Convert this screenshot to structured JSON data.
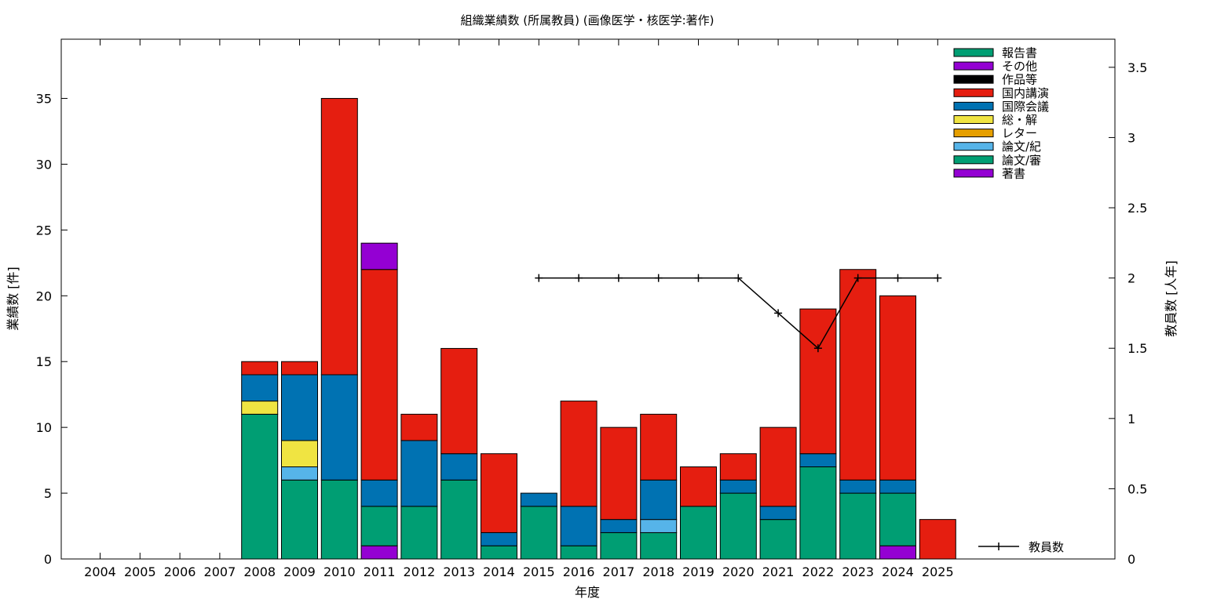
{
  "chart_data": {
    "type": "bar",
    "stacked": true,
    "title": "組織業績数 (所属教員) (画像医学・核医学:著作)",
    "xlabel": "年度",
    "ylabel": "業績数 [件]",
    "y2label": "教員数 [人年]",
    "ylim": [
      0,
      39.5
    ],
    "y2lim": [
      0,
      3.7
    ],
    "yticks": [
      "0",
      "5",
      "10",
      "15",
      "20",
      "25",
      "30",
      "35"
    ],
    "y2ticks": [
      "0",
      "0.5",
      "1",
      "1.5",
      "2",
      "2.5",
      "3",
      "3.5"
    ],
    "grid": false,
    "legend_position": "top-right",
    "categories": [
      "2004",
      "2005",
      "2006",
      "2007",
      "2008",
      "2009",
      "2010",
      "2011",
      "2012",
      "2013",
      "2014",
      "2015",
      "2016",
      "2017",
      "2018",
      "2019",
      "2020",
      "2021",
      "2022",
      "2023",
      "2024",
      "2025"
    ],
    "series": [
      {
        "name": "著書",
        "color": "#9400d3",
        "values": [
          0,
          0,
          0,
          0,
          0,
          0,
          0,
          1,
          0,
          0,
          0,
          0,
          0,
          0,
          0,
          0,
          0,
          0,
          0,
          0,
          1,
          0
        ]
      },
      {
        "name": "論文/審",
        "color": "#009e73",
        "values": [
          0,
          0,
          0,
          0,
          11,
          6,
          6,
          3,
          4,
          6,
          1,
          4,
          1,
          2,
          2,
          4,
          5,
          3,
          7,
          5,
          4,
          0
        ]
      },
      {
        "name": "論文/紀",
        "color": "#56b4e9",
        "values": [
          0,
          0,
          0,
          0,
          0,
          1,
          0,
          0,
          0,
          0,
          0,
          0,
          0,
          0,
          1,
          0,
          0,
          0,
          0,
          0,
          0,
          0
        ]
      },
      {
        "name": "レター",
        "color": "#e69f00",
        "values": [
          0,
          0,
          0,
          0,
          0,
          0,
          0,
          0,
          0,
          0,
          0,
          0,
          0,
          0,
          0,
          0,
          0,
          0,
          0,
          0,
          0,
          0
        ]
      },
      {
        "name": "総・解",
        "color": "#f0e442",
        "values": [
          0,
          0,
          0,
          0,
          1,
          2,
          0,
          0,
          0,
          0,
          0,
          0,
          0,
          0,
          0,
          0,
          0,
          0,
          0,
          0,
          0,
          0
        ]
      },
      {
        "name": "国際会議",
        "color": "#0072b2",
        "values": [
          0,
          0,
          0,
          0,
          2,
          5,
          8,
          2,
          5,
          2,
          1,
          1,
          3,
          1,
          3,
          0,
          1,
          1,
          1,
          1,
          1,
          0
        ]
      },
      {
        "name": "国内講演",
        "color": "#e51e10",
        "values": [
          0,
          0,
          0,
          0,
          1,
          1,
          21,
          16,
          2,
          8,
          6,
          0,
          8,
          7,
          5,
          3,
          2,
          6,
          11,
          16,
          14,
          3
        ]
      },
      {
        "name": "作品等",
        "color": "#000000",
        "values": [
          0,
          0,
          0,
          0,
          0,
          0,
          0,
          0,
          0,
          0,
          0,
          0,
          0,
          0,
          0,
          0,
          0,
          0,
          0,
          0,
          0,
          0
        ]
      },
      {
        "name": "その他",
        "color": "#9400d3",
        "values": [
          0,
          0,
          0,
          0,
          0,
          0,
          0,
          2,
          0,
          0,
          0,
          0,
          0,
          0,
          0,
          0,
          0,
          0,
          0,
          0,
          0,
          0
        ]
      },
      {
        "name": "報告書",
        "color": "#009e73",
        "values": [
          0,
          0,
          0,
          0,
          0,
          0,
          0,
          0,
          0,
          0,
          0,
          0,
          0,
          0,
          0,
          0,
          0,
          0,
          0,
          0,
          0,
          0
        ]
      }
    ],
    "legend_order": [
      "報告書",
      "その他",
      "作品等",
      "国内講演",
      "国際会議",
      "総・解",
      "レター",
      "論文/紀",
      "論文/審",
      "著書"
    ],
    "line_series": {
      "name": "教員数",
      "axis": "y2",
      "color": "#000000",
      "x": [
        "2015",
        "2016",
        "2017",
        "2018",
        "2019",
        "2020",
        "2021",
        "2022",
        "2023",
        "2024",
        "2025"
      ],
      "values": [
        2,
        2,
        2,
        2,
        2,
        2,
        1.75,
        1.5,
        2,
        2,
        2
      ]
    }
  }
}
